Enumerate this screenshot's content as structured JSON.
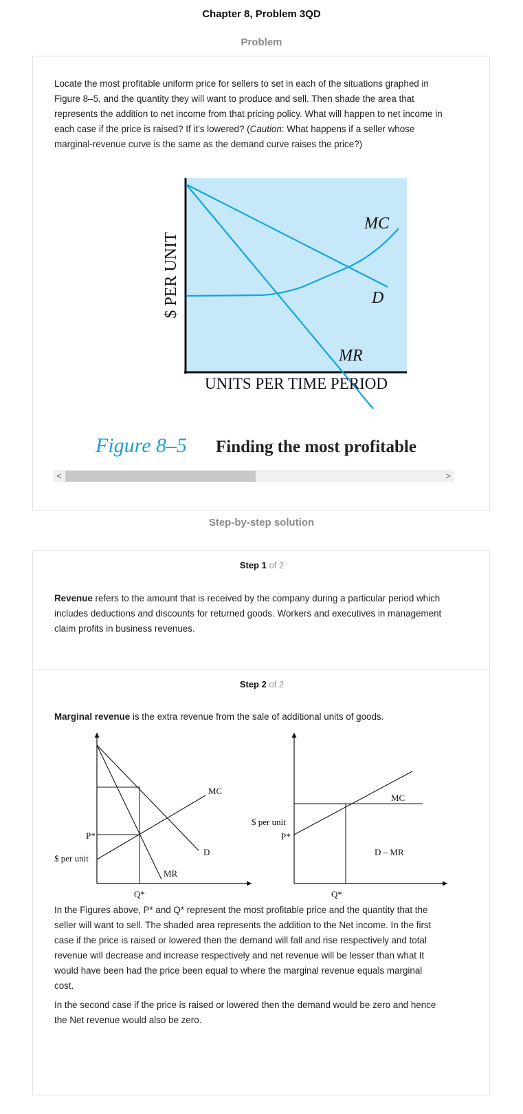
{
  "page_title": "Chapter 8, Problem 3QD",
  "problem_heading": "Problem",
  "problem_text_1": "Locate the most profitable uniform price for sellers to set in each of the situations graphed in",
  "problem_text_2": "Figure 8–5, and the quantity they will want to produce and sell. Then shade the area that",
  "problem_text_3": "represents the addition to net income from that pricing policy. What will happen to net income in",
  "problem_text_4a": "each case if the price is raised? If it's lowered? (",
  "problem_text_4b": "Caution",
  "problem_text_4c": ": What happens if a seller whose",
  "problem_text_5": "marginal-revenue curve is the same as the demand curve raises the price?)",
  "figure": {
    "y_axis_label": "$ PER UNIT",
    "x_axis_label": "UNITS PER TIME PERIOD",
    "mc_label": "MC",
    "d_label": "D",
    "mr_label": "MR",
    "caption_number": "Figure 8–5",
    "caption_title": "Finding the most profitable",
    "colors": {
      "panel": "#c6e8f8",
      "curve": "#0ea5e0",
      "caption": "#1aa0dc"
    }
  },
  "scrollbar": {
    "left_arrow": "<",
    "right_arrow": ">"
  },
  "solution_heading": "Step-by-step solution",
  "step1": {
    "label": "Step 1",
    "of": "of 2",
    "term": "Revenue",
    "text_1": " refers to the amount that is received by the company during a particular period which",
    "text_2": "includes deductions and discounts for returned goods. Workers and executives in management",
    "text_3": "claim profits in business revenues."
  },
  "step2": {
    "label": "Step 2",
    "of": "of 2",
    "term": "Marginal revenue",
    "text_1": " is the extra revenue from the sale of additional units of goods.",
    "graph_left": {
      "p_label": "P*",
      "y_label": "$ per unit",
      "q_label": "Q*",
      "mc_label": "MC",
      "d_label": "D",
      "mr_label": "MR"
    },
    "graph_right": {
      "y_label": "$ per unit",
      "p_label": "P*",
      "q_label": "Q*",
      "mc_label": "MC",
      "dmr_label": "D – MR"
    },
    "para1_1": "In the Figures above, P* and Q* represent the most profitable price and the quantity that the",
    "para1_2": "seller will want to sell. The shaded area represents the addition to the Net income. In the first",
    "para1_3": "case if the price is raised or lowered then the demand will fall and rise respectively and total",
    "para1_4": "revenue will decrease and increase respectively and net revenue will be lesser than what It",
    "para1_5": "would have been had the price been equal to where the marginal revenue equals marginal",
    "para1_6": "cost.",
    "para2_1": "In the second case if the price is raised or lowered then the demand would be zero and hence",
    "para2_2": "the Net revenue would also be zero."
  }
}
